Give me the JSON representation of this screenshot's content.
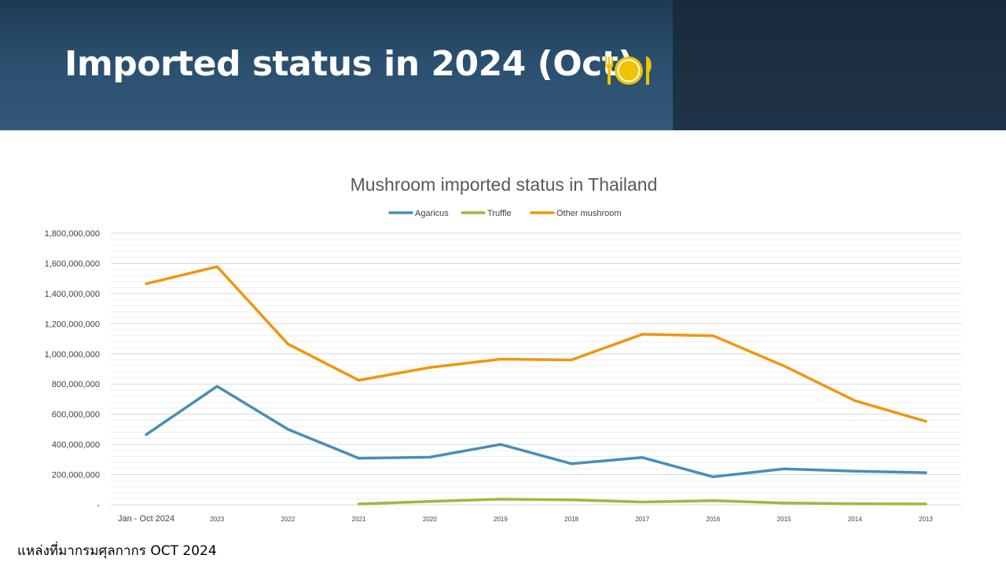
{
  "header": {
    "title": "Imported status in 2024 (Oct)",
    "icon": "plate-cutlery-icon",
    "accent_color": "#f2c200"
  },
  "footer": {
    "source": "แหล่งที่มากรมศุลกากร OCT 2024"
  },
  "chart_data": {
    "type": "line",
    "title": "Mushroom imported status in Thailand",
    "xlabel": "",
    "ylabel": "",
    "legend_position": "top",
    "grid": true,
    "categories": [
      "Jan - Oct 2024",
      "2023",
      "2022",
      "2021",
      "2020",
      "2019",
      "2018",
      "2017",
      "2016",
      "2015",
      "2014",
      "2013"
    ],
    "ylim": [
      0,
      1800000000
    ],
    "yticks": [
      0,
      200000000,
      400000000,
      600000000,
      800000000,
      1000000000,
      1200000000,
      1400000000,
      1600000000,
      1800000000
    ],
    "ytick_labels": [
      "-",
      "200,000,000",
      "400,000,000",
      "600,000,000",
      "800,000,000",
      "1,000,000,000",
      "1,200,000,000",
      "1,400,000,000",
      "1,600,000,000",
      "1,800,000,000"
    ],
    "series": [
      {
        "name": "Agaricus",
        "color": "#4a8db8",
        "values": [
          465000000,
          785000000,
          500000000,
          308000000,
          315000000,
          400000000,
          272000000,
          313000000,
          185000000,
          238000000,
          222000000,
          213000000
        ]
      },
      {
        "name": "Truffle",
        "color": "#9bbb3b",
        "values": [
          null,
          null,
          null,
          5000000,
          22000000,
          37000000,
          33000000,
          18000000,
          27000000,
          12000000,
          7000000,
          5000000
        ]
      },
      {
        "name": "Other mushroom",
        "color": "#f0960f",
        "values": [
          1465000000,
          1578000000,
          1065000000,
          825000000,
          910000000,
          965000000,
          960000000,
          1130000000,
          1120000000,
          920000000,
          690000000,
          553000000
        ]
      }
    ]
  }
}
